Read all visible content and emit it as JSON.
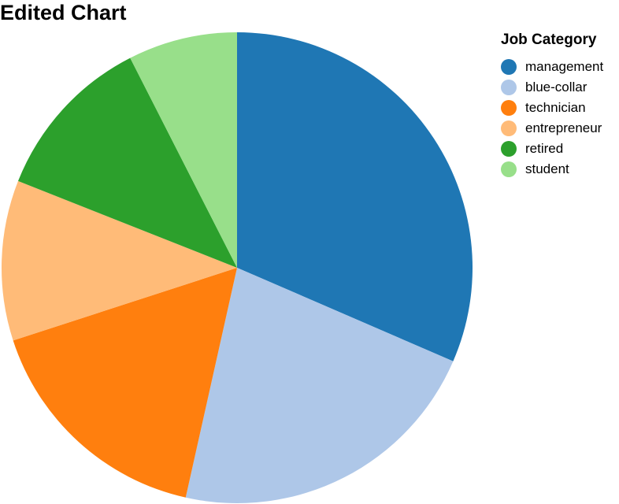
{
  "chart_data": {
    "type": "pie",
    "title": "Edited Chart",
    "legend": {
      "title": "Job Category",
      "placement": "top-right"
    },
    "categories": [
      "management",
      "blue-collar",
      "technician",
      "entrepreneur",
      "retired",
      "student"
    ],
    "values": [
      31.5,
      22.0,
      16.5,
      11.0,
      11.5,
      7.5
    ],
    "colors": [
      "#1f77b4",
      "#aec7e8",
      "#ff7f0e",
      "#ffbb78",
      "#2ca02c",
      "#98df8a"
    ]
  }
}
